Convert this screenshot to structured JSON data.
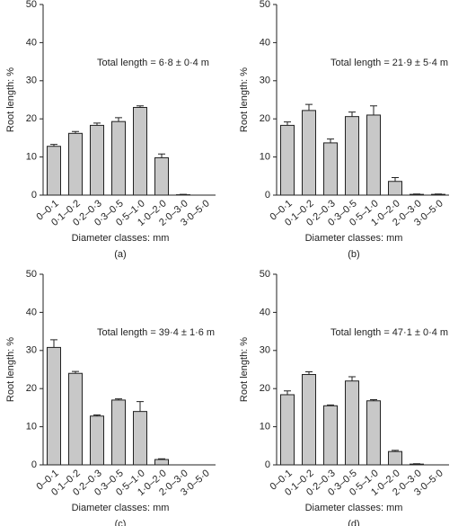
{
  "chart_data": [
    {
      "type": "bar",
      "label": "(a)",
      "annotation": "Total length = 6·8 ± 0·4 m",
      "ylabel": "Root length: %",
      "xlabel": "Diameter classes: mm",
      "categories": [
        "0–0·1",
        "0·1–0·2",
        "0·2–0·3",
        "0·3–0·5",
        "0·5–1·0",
        "1·0–2·0",
        "2·0–3·0",
        "3·0–5·0"
      ],
      "values": [
        12.8,
        16.2,
        18.3,
        19.3,
        23.0,
        9.8,
        0.1,
        0
      ],
      "errors": [
        0.5,
        0.5,
        0.6,
        1.0,
        0.4,
        1.0,
        0.1,
        0
      ],
      "color": "#c8c8c8",
      "ylim": [
        0,
        50
      ],
      "yticks": [
        0,
        10,
        20,
        30,
        40,
        50
      ]
    },
    {
      "type": "bar",
      "label": "(b)",
      "annotation": "Total length = 21·9 ± 5·4 m",
      "ylabel": "Root length: %",
      "xlabel": "Diameter classes: mm",
      "categories": [
        "0–0·1",
        "0·1–0·2",
        "0·2–0·3",
        "0·3–0·5",
        "0·5–1·0",
        "1·0–2·0",
        "2·0–3·0",
        "3·0–5·0"
      ],
      "values": [
        18.3,
        22.2,
        13.7,
        20.6,
        21.0,
        3.6,
        0.2,
        0.2
      ],
      "errors": [
        0.9,
        1.6,
        1.0,
        1.2,
        2.4,
        1.0,
        0.1,
        0.1
      ],
      "color": "#c8c8c8",
      "ylim": [
        0,
        50
      ],
      "yticks": [
        0,
        10,
        20,
        30,
        40,
        50
      ]
    },
    {
      "type": "bar",
      "label": "(c)",
      "annotation": "Total length = 39·4 ± 1·6 m",
      "ylabel": "Root length: %",
      "xlabel": "Diameter classes: mm",
      "categories": [
        "0–0·1",
        "0·1–0·2",
        "0·2–0·3",
        "0·3–0·5",
        "0·5–1·0",
        "1·0–2·0",
        "2·0–3·0",
        "3·0–5·0"
      ],
      "values": [
        30.8,
        24.0,
        12.8,
        17.0,
        14.0,
        1.4,
        0,
        0
      ],
      "errors": [
        2.0,
        0.5,
        0.3,
        0.3,
        2.6,
        0.2,
        0,
        0
      ],
      "color": "#c8c8c8",
      "ylim": [
        0,
        50
      ],
      "yticks": [
        0,
        10,
        20,
        30,
        40,
        50
      ]
    },
    {
      "type": "bar",
      "label": "(d)",
      "annotation": "Total length = 47·1 ± 0·4 m",
      "ylabel": "Root length: %",
      "xlabel": "Diameter classes: mm",
      "categories": [
        "0–0·1",
        "0·1–0·2",
        "0·2–0·3",
        "0·3–0·5",
        "0·5–1·0",
        "1·0–2·0",
        "2·0–3·0",
        "3·0–5·0"
      ],
      "values": [
        18.4,
        23.7,
        15.5,
        22.0,
        16.8,
        3.5,
        0.2,
        0
      ],
      "errors": [
        1.0,
        0.7,
        0.2,
        1.1,
        0.3,
        0.3,
        0.1,
        0
      ],
      "color": "#c8c8c8",
      "ylim": [
        0,
        50
      ],
      "yticks": [
        0,
        10,
        20,
        30,
        40,
        50
      ]
    }
  ]
}
